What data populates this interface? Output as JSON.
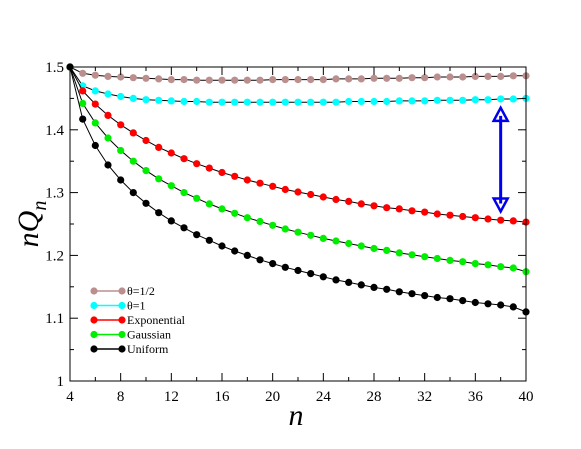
{
  "chart_data": {
    "type": "line",
    "xlabel": "n",
    "ylabel": "nQ",
    "ylabel_subscript": "n",
    "xlim": [
      4,
      40
    ],
    "ylim": [
      1.0,
      1.5
    ],
    "xticks": [
      "4",
      "8",
      "12",
      "16",
      "20",
      "24",
      "28",
      "32",
      "36",
      "40"
    ],
    "yticks": [
      "1",
      "1.1",
      "1.2",
      "1.3",
      "1.4",
      "1.5"
    ],
    "x": [
      4,
      5,
      6,
      7,
      8,
      9,
      10,
      11,
      12,
      13,
      14,
      15,
      16,
      17,
      18,
      19,
      20,
      21,
      22,
      23,
      24,
      25,
      26,
      27,
      28,
      29,
      30,
      31,
      32,
      33,
      34,
      35,
      36,
      37,
      38,
      39,
      40
    ],
    "series": [
      {
        "name": "θ=1/2",
        "color": "#bc8f8f",
        "values": [
          1.5,
          1.49,
          1.487,
          1.485,
          1.484,
          1.483,
          1.482,
          1.481,
          1.48,
          1.48,
          1.479,
          1.479,
          1.479,
          1.479,
          1.479,
          1.479,
          1.48,
          1.48,
          1.48,
          1.48,
          1.48,
          1.481,
          1.481,
          1.481,
          1.482,
          1.482,
          1.482,
          1.483,
          1.483,
          1.484,
          1.484,
          1.484,
          1.485,
          1.485,
          1.485,
          1.486,
          1.486
        ]
      },
      {
        "name": "θ=1",
        "color": "#00ffff",
        "values": [
          1.5,
          1.47,
          1.462,
          1.457,
          1.453,
          1.45,
          1.448,
          1.447,
          1.446,
          1.445,
          1.445,
          1.444,
          1.444,
          1.444,
          1.444,
          1.444,
          1.444,
          1.444,
          1.444,
          1.444,
          1.444,
          1.444,
          1.445,
          1.445,
          1.445,
          1.445,
          1.446,
          1.446,
          1.446,
          1.447,
          1.447,
          1.447,
          1.448,
          1.448,
          1.449,
          1.449,
          1.45
        ]
      },
      {
        "name": "Exponential",
        "color": "#ff0000",
        "values": [
          1.5,
          1.462,
          1.441,
          1.423,
          1.408,
          1.395,
          1.383,
          1.372,
          1.363,
          1.354,
          1.346,
          1.339,
          1.332,
          1.326,
          1.32,
          1.315,
          1.31,
          1.305,
          1.301,
          1.297,
          1.293,
          1.289,
          1.286,
          1.282,
          1.279,
          1.276,
          1.274,
          1.271,
          1.269,
          1.266,
          1.264,
          1.262,
          1.26,
          1.258,
          1.256,
          1.255,
          1.253
        ]
      },
      {
        "name": "Gaussian",
        "color": "#00ee00",
        "values": [
          1.5,
          1.442,
          1.411,
          1.387,
          1.367,
          1.35,
          1.335,
          1.322,
          1.311,
          1.3,
          1.291,
          1.282,
          1.274,
          1.267,
          1.26,
          1.254,
          1.248,
          1.242,
          1.237,
          1.232,
          1.227,
          1.223,
          1.219,
          1.215,
          1.211,
          1.208,
          1.204,
          1.201,
          1.198,
          1.195,
          1.192,
          1.19,
          1.187,
          1.185,
          1.182,
          1.18,
          1.174
        ]
      },
      {
        "name": "Uniform",
        "color": "#000000",
        "values": [
          1.5,
          1.417,
          1.375,
          1.344,
          1.32,
          1.3,
          1.283,
          1.268,
          1.255,
          1.244,
          1.233,
          1.224,
          1.215,
          1.207,
          1.2,
          1.193,
          1.187,
          1.181,
          1.176,
          1.171,
          1.166,
          1.161,
          1.157,
          1.153,
          1.149,
          1.146,
          1.142,
          1.139,
          1.136,
          1.133,
          1.131,
          1.128,
          1.125,
          1.123,
          1.121,
          1.118,
          1.11
        ]
      }
    ],
    "arrow": {
      "x": 38,
      "y_from": 1.27,
      "y_to": 1.435,
      "color": "#0000ee"
    },
    "legend": "bottom-left",
    "grid": false
  }
}
